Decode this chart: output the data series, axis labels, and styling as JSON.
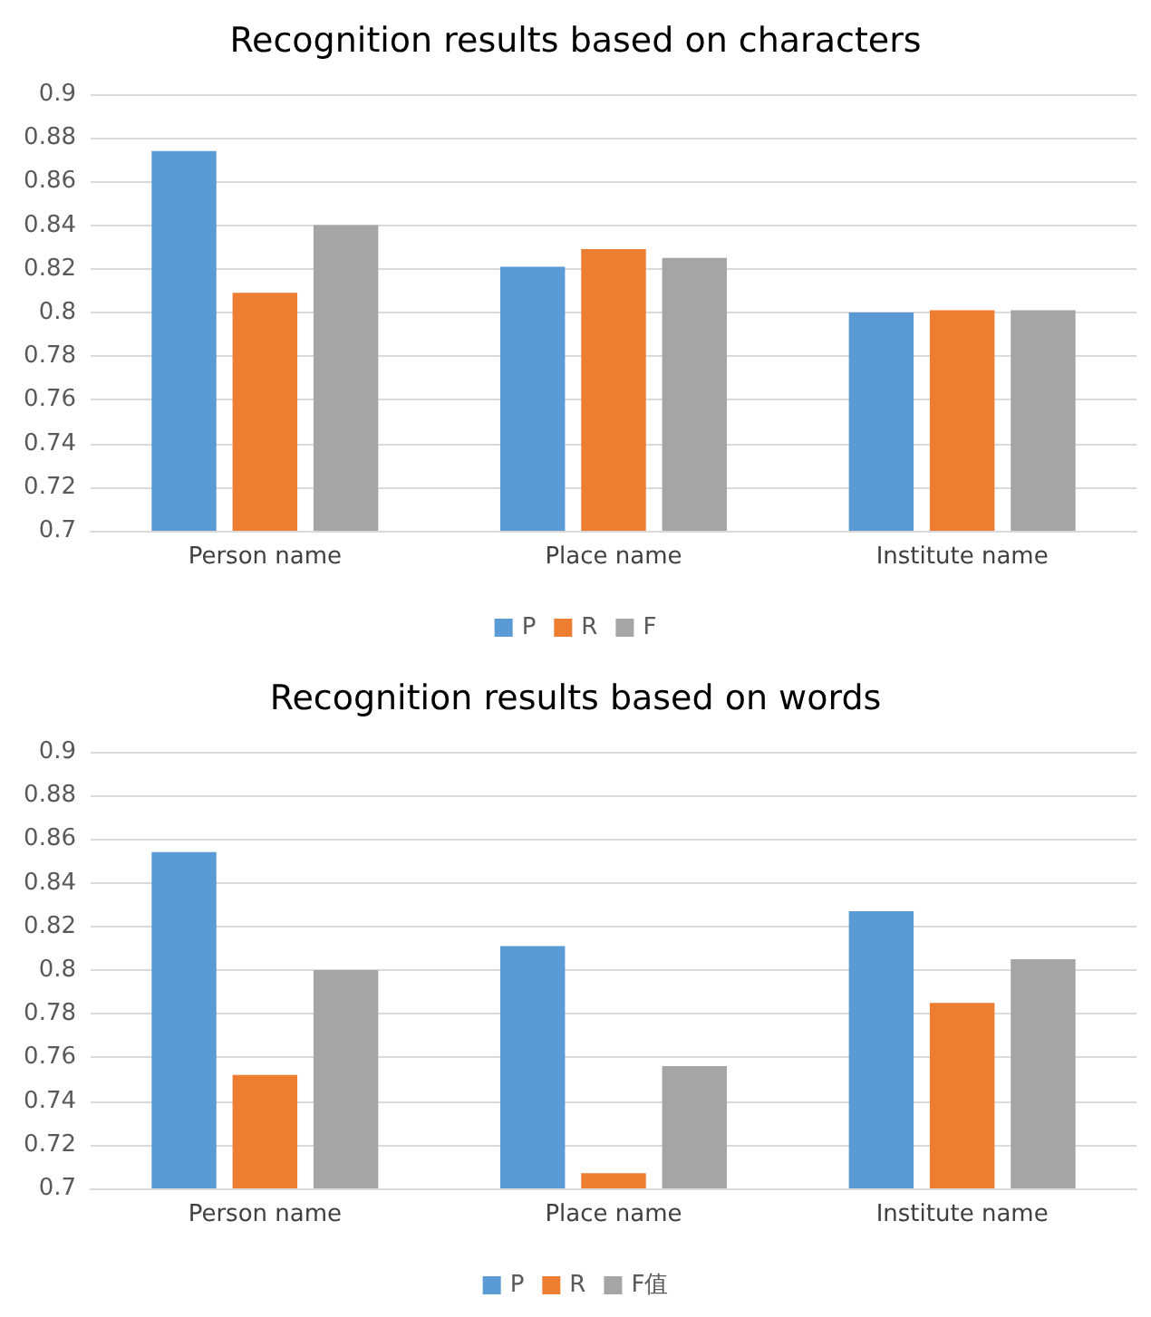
{
  "chart_data": [
    {
      "type": "bar",
      "title": "Recognition results based on characters",
      "categories": [
        "Person name",
        "Place name",
        "Institute name"
      ],
      "series": [
        {
          "name": "P",
          "color": "#5b9bd5",
          "values": [
            0.874,
            0.821,
            0.8
          ]
        },
        {
          "name": "R",
          "color": "#ed7d31",
          "values": [
            0.809,
            0.829,
            0.801
          ]
        },
        {
          "name": "F",
          "color": "#a5a5a5",
          "values": [
            0.84,
            0.825,
            0.801
          ]
        }
      ],
      "ylim": [
        0.7,
        0.9
      ],
      "yticks": [
        0.7,
        0.72,
        0.74,
        0.76,
        0.78,
        0.8,
        0.82,
        0.84,
        0.86,
        0.88,
        0.9
      ],
      "grid": "y",
      "legend": "bottom"
    },
    {
      "type": "bar",
      "title": "Recognition results based on words",
      "categories": [
        "Person name",
        "Place name",
        "Institute name"
      ],
      "series": [
        {
          "name": "P",
          "color": "#5b9bd5",
          "values": [
            0.854,
            0.811,
            0.827
          ]
        },
        {
          "name": "R",
          "color": "#ed7d31",
          "values": [
            0.752,
            0.707,
            0.785
          ]
        },
        {
          "name": "F值",
          "color": "#a5a5a5",
          "values": [
            0.8,
            0.756,
            0.805
          ]
        }
      ],
      "ylim": [
        0.7,
        0.9
      ],
      "yticks": [
        0.7,
        0.72,
        0.74,
        0.76,
        0.78,
        0.8,
        0.82,
        0.84,
        0.86,
        0.88,
        0.9
      ],
      "grid": "y",
      "legend": "bottom"
    }
  ]
}
